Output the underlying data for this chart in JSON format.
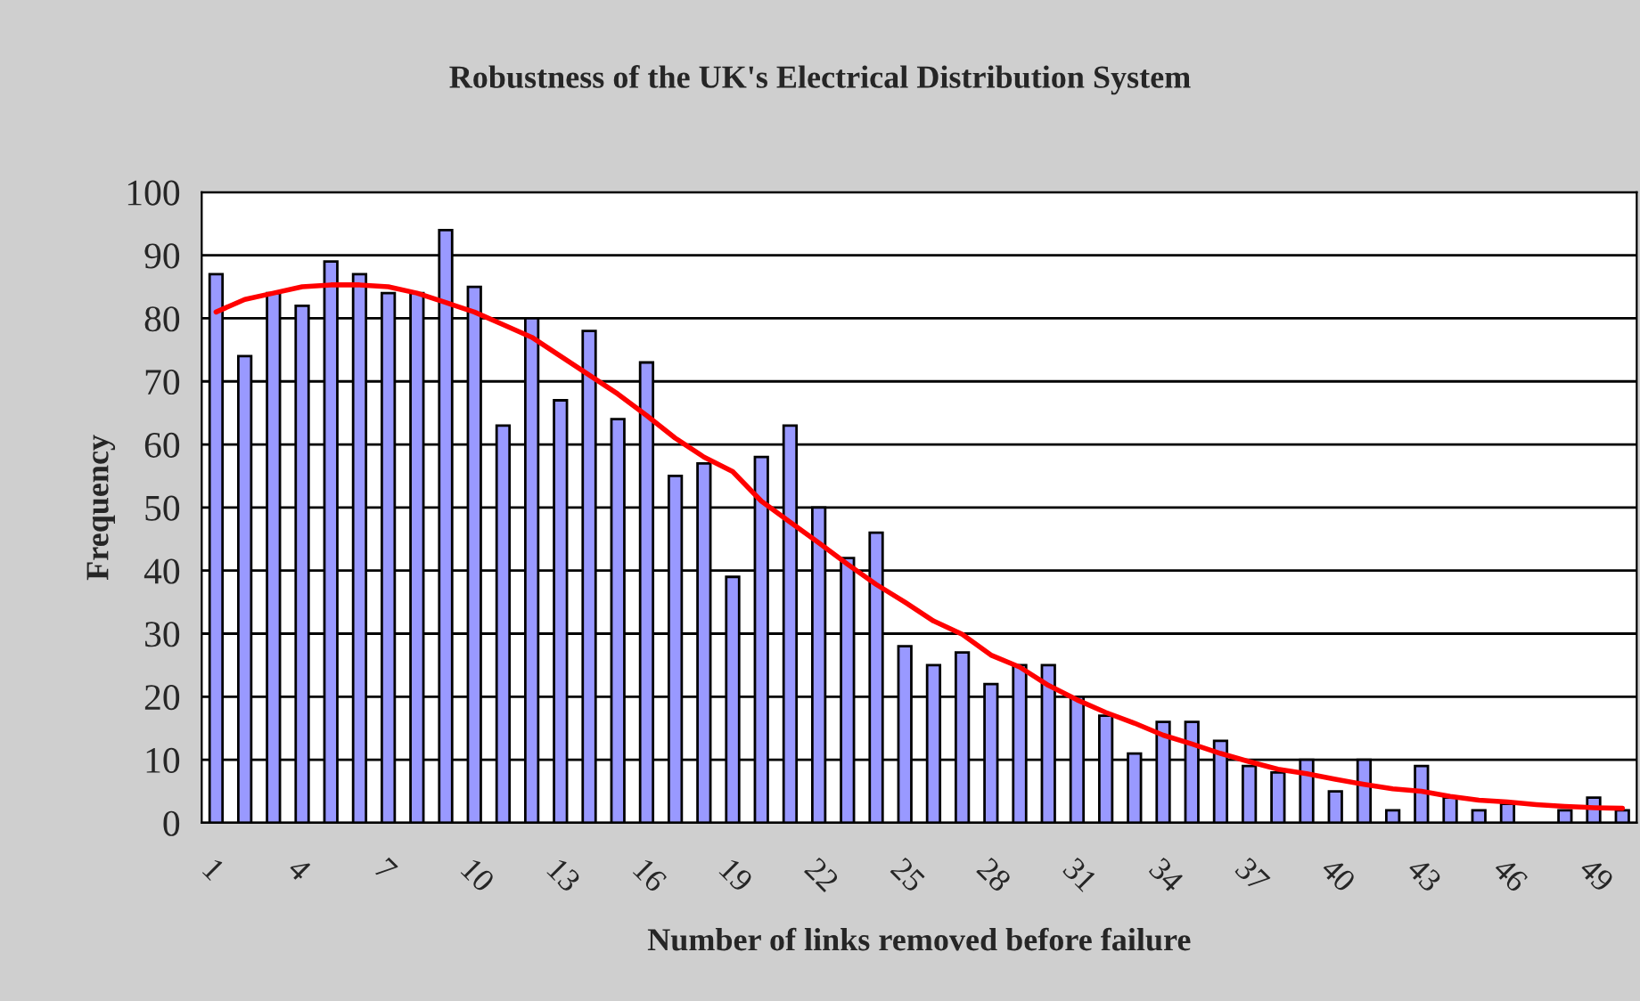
{
  "chart_data": {
    "type": "bar",
    "title": "Robustness of the UK's Electrical Distribution System",
    "xlabel": "Number of links removed before failure",
    "ylabel": "Frequency",
    "categories": [
      "1",
      null,
      null,
      "4",
      null,
      null,
      "7",
      null,
      null,
      "10",
      null,
      null,
      "13",
      null,
      null,
      "16",
      null,
      null,
      "19",
      null,
      null,
      "22",
      null,
      null,
      "25",
      null,
      null,
      "28",
      null,
      null,
      "31",
      null,
      null,
      "34",
      null,
      null,
      "37",
      null,
      null,
      "40",
      null,
      null,
      "43",
      null,
      null,
      "46",
      null,
      null,
      "49",
      null
    ],
    "series": [
      {
        "color": "#9999ff",
        "values": [
          87,
          74,
          84,
          82,
          89,
          87,
          84,
          84,
          94,
          85,
          63,
          80,
          67,
          78,
          64,
          73,
          55,
          57,
          39,
          58,
          63,
          50,
          42,
          46,
          28,
          25,
          27,
          22,
          25,
          25,
          20,
          17,
          11,
          16,
          16,
          13,
          9,
          8,
          10,
          5,
          10,
          2,
          9,
          4,
          2,
          3,
          0,
          2,
          4,
          2
        ]
      },
      {
        "type": "line",
        "color": "#ff0000",
        "values": [
          81,
          83,
          84,
          85,
          85.3,
          85.3,
          85,
          84,
          82.5,
          81,
          79,
          77,
          74,
          71,
          68,
          64.6,
          61,
          58,
          55.7,
          51,
          47.7,
          44.4,
          41,
          37.8,
          35,
          32,
          29.9,
          26.6,
          24.7,
          21.8,
          19.5,
          17.5,
          15.8,
          13.9,
          12.5,
          11,
          9.7,
          8.5,
          7.8,
          6.9,
          6.1,
          5.4,
          5,
          4.2,
          3.6,
          3.3,
          2.9,
          2.6,
          2.4,
          2.3
        ]
      }
    ],
    "ylim": [
      0,
      100
    ],
    "yticks": [
      0,
      10,
      20,
      30,
      40,
      50,
      60,
      70,
      80,
      90,
      100
    ],
    "grid": "y",
    "legend": false
  }
}
